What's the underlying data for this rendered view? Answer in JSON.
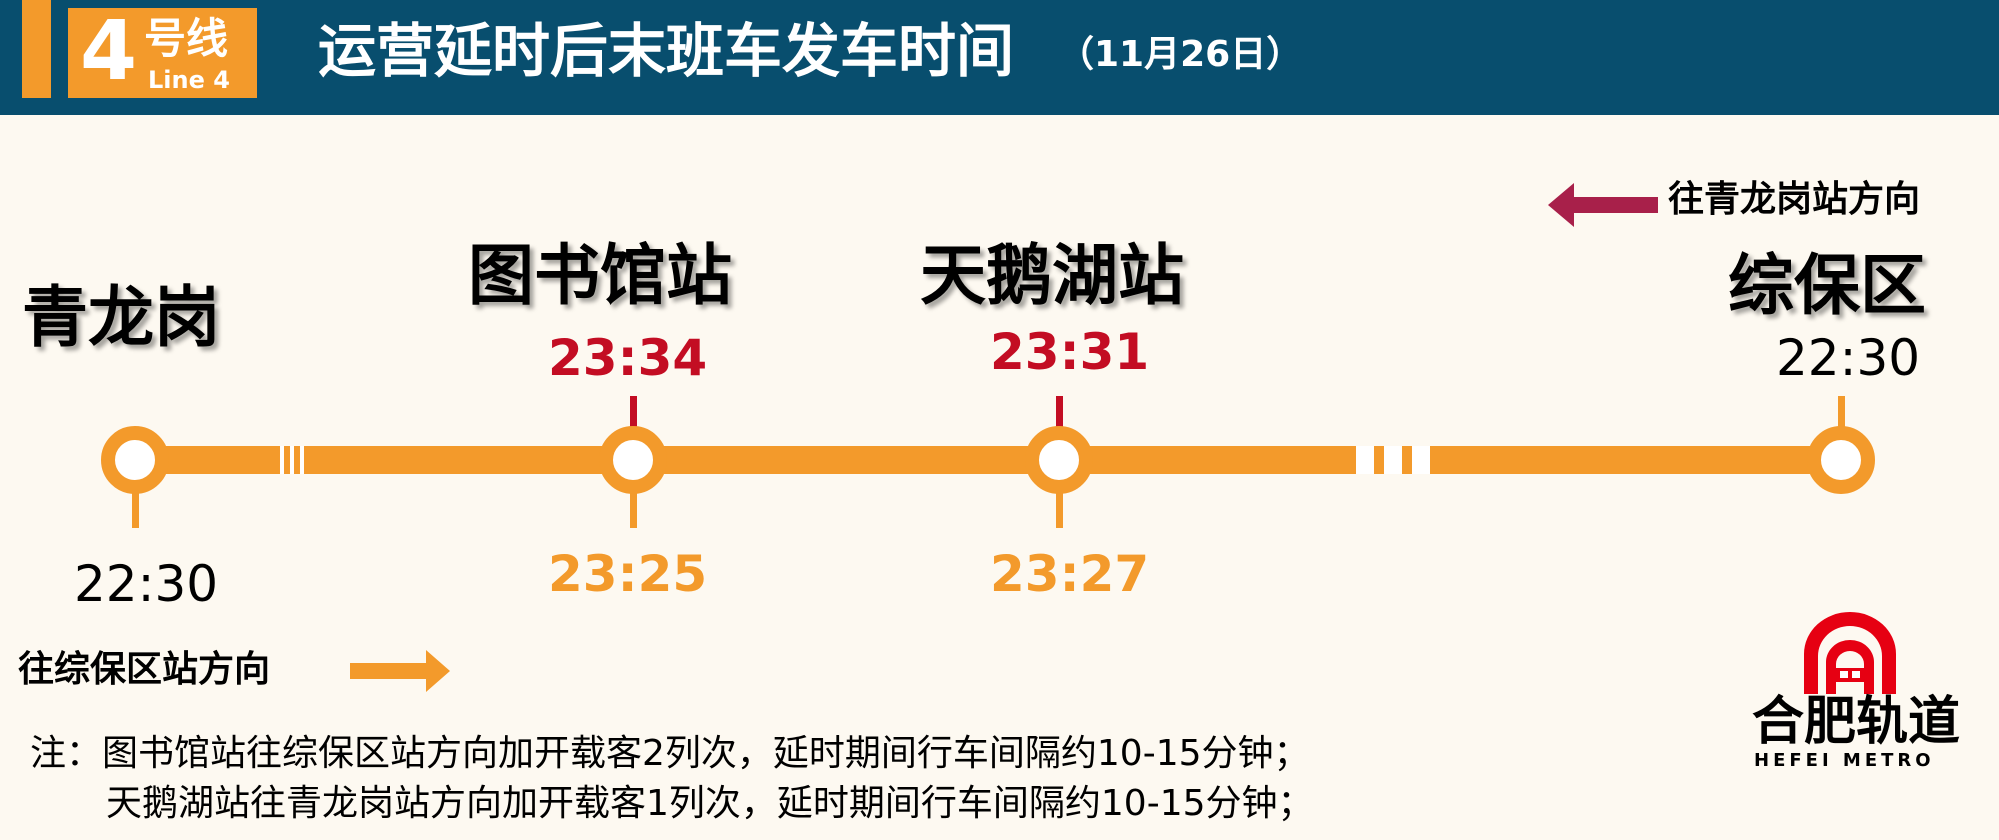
{
  "header": {
    "line_number": "4",
    "line_cn": "号线",
    "line_en": "Line 4",
    "title": "运营延时后末班车发车时间",
    "date": "（11月26日）"
  },
  "directions": {
    "toward_qinglonggang": "往青龙岗站方向",
    "toward_zongbaoqu": "往综保区站方向"
  },
  "stations": [
    {
      "name": "青龙岗",
      "time_toward_qinglonggang": "",
      "time_toward_zongbaoqu": "22:30"
    },
    {
      "name": "图书馆站",
      "time_toward_qinglonggang": "23:34",
      "time_toward_zongbaoqu": "23:25"
    },
    {
      "name": "天鹅湖站",
      "time_toward_qinglonggang": "23:31",
      "time_toward_zongbaoqu": "23:27"
    },
    {
      "name": "综保区",
      "time_toward_qinglonggang": "22:30",
      "time_toward_zongbaoqu": ""
    }
  ],
  "notes": [
    "注：图书馆站往综保区站方向加开载客2列次，延时期间行车间隔约10-15分钟；",
    "天鹅湖站往青龙岗站方向加开载客1列次，延时期间行车间隔约10-15分钟；"
  ],
  "logo": {
    "cn": "合肥轨道",
    "en": "HEFEI METRO"
  },
  "colors": {
    "header_bg": "#084e6e",
    "line_orange": "#f39a2b",
    "time_red": "#c30d23",
    "arrow_crimson": "#a8204a"
  }
}
